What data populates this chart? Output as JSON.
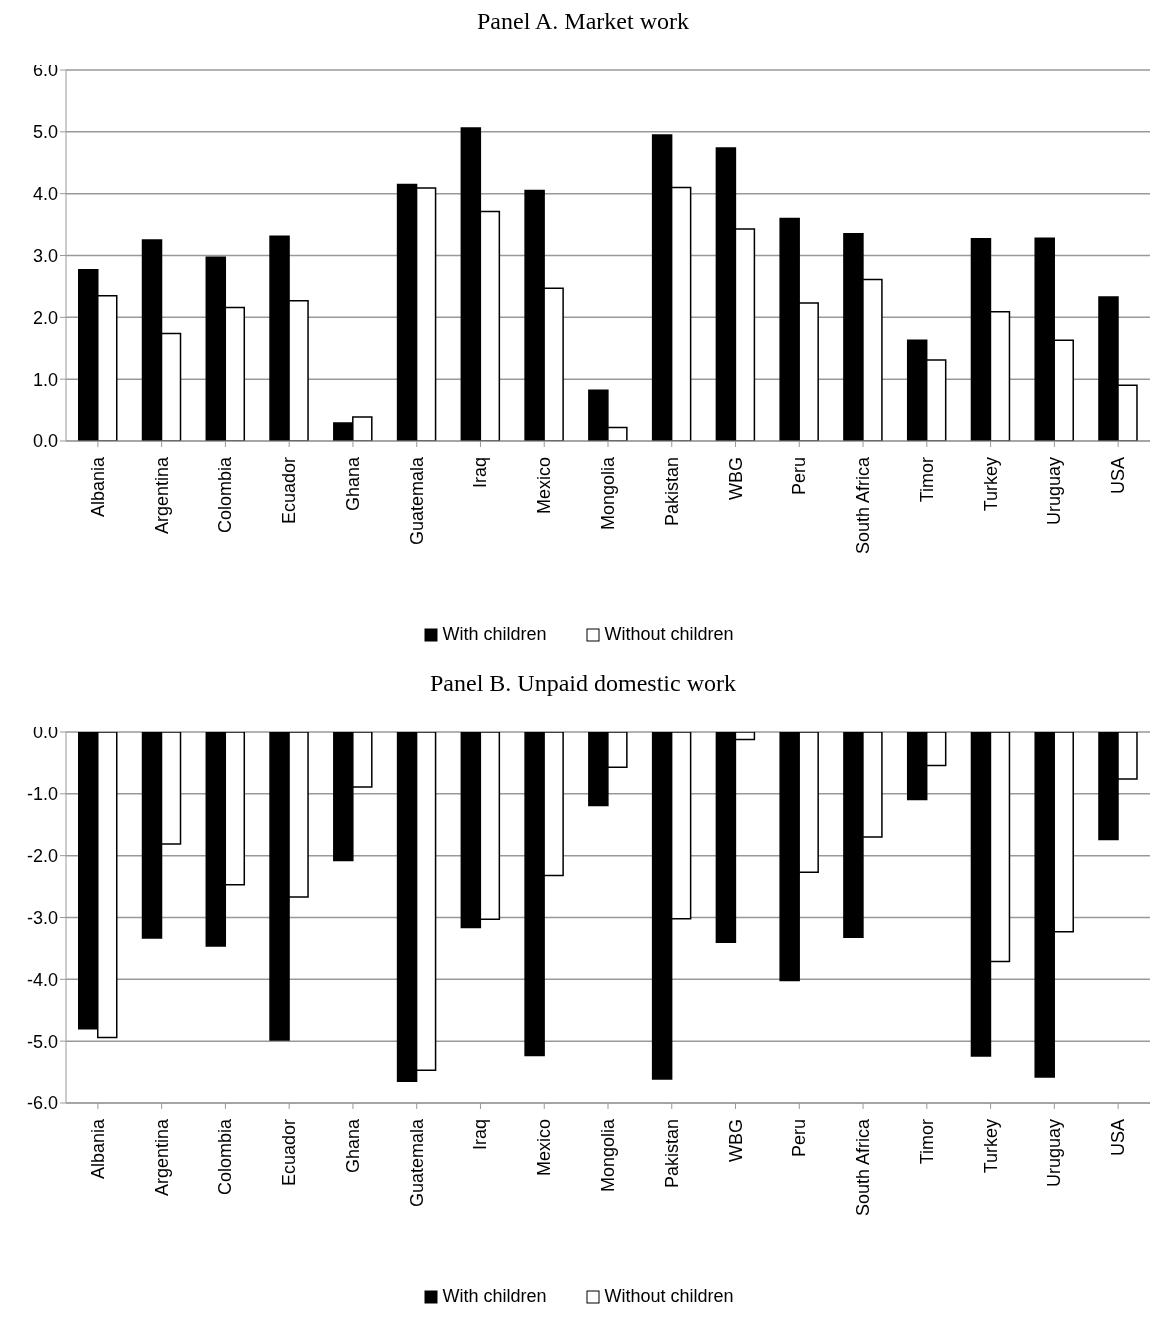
{
  "chart_data": [
    {
      "type": "bar",
      "title": "Panel A. Market work",
      "categories": [
        "Albania",
        "Argentina",
        "Colombia",
        "Ecuador",
        "Ghana",
        "Guatemala",
        "Iraq",
        "Mexico",
        "Mongolia",
        "Pakistan",
        "WBG",
        "Peru",
        "South Africa",
        "Timor",
        "Turkey",
        "Uruguay",
        "USA"
      ],
      "series": [
        {
          "name": "With children",
          "color": "#000000",
          "values": [
            2.77,
            3.25,
            2.97,
            3.31,
            0.29,
            4.15,
            5.06,
            4.05,
            0.82,
            4.95,
            4.74,
            3.6,
            3.35,
            1.63,
            3.27,
            3.28,
            2.33
          ]
        },
        {
          "name": "Without children",
          "color": "#ffffff",
          "values": [
            2.35,
            1.74,
            2.16,
            2.27,
            0.39,
            4.09,
            3.71,
            2.47,
            0.22,
            4.1,
            3.43,
            2.23,
            2.61,
            1.31,
            2.09,
            1.63,
            0.9
          ]
        }
      ],
      "ylim": [
        0,
        6
      ],
      "yticks": [
        {
          "value": 0,
          "label": "0.0"
        },
        {
          "value": 1,
          "label": "1.0"
        },
        {
          "value": 2,
          "label": "2.0"
        },
        {
          "value": 3,
          "label": "3.0"
        },
        {
          "value": 4,
          "label": "4.0"
        },
        {
          "value": 5,
          "label": "5.0"
        },
        {
          "value": 6,
          "label": "6.0"
        }
      ],
      "grid": "y",
      "legend": "bottom"
    },
    {
      "type": "bar",
      "title": "Panel B. Unpaid domestic work",
      "categories": [
        "Albania",
        "Argentina",
        "Colombia",
        "Ecuador",
        "Ghana",
        "Guatemala",
        "Iraq",
        "Mexico",
        "Mongolia",
        "Pakistan",
        "WBG",
        "Peru",
        "South Africa",
        "Timor",
        "Turkey",
        "Uruguay",
        "USA"
      ],
      "series": [
        {
          "name": "With children",
          "color": "#000000",
          "values": [
            -4.8,
            -3.33,
            -3.46,
            -4.98,
            -2.08,
            -5.65,
            -3.16,
            -5.23,
            -1.19,
            -5.61,
            -3.4,
            -4.02,
            -3.32,
            -1.09,
            -5.24,
            -5.58,
            -1.74
          ]
        },
        {
          "name": "Without children",
          "color": "#ffffff",
          "values": [
            -4.94,
            -1.81,
            -2.47,
            -2.67,
            -0.89,
            -5.47,
            -3.03,
            -2.32,
            -0.57,
            -3.02,
            -0.12,
            -2.27,
            -1.7,
            -0.54,
            -3.71,
            -3.23,
            -0.76
          ]
        }
      ],
      "ylim": [
        -6,
        0
      ],
      "yticks": [
        {
          "value": -6,
          "label": "-6.0"
        },
        {
          "value": -5,
          "label": "-5.0"
        },
        {
          "value": -4,
          "label": "-4.0"
        },
        {
          "value": -3,
          "label": "-3.0"
        },
        {
          "value": -2,
          "label": "-2.0"
        },
        {
          "value": -1,
          "label": "-1.0"
        },
        {
          "value": 0,
          "label": "0.0"
        }
      ],
      "grid": "y",
      "legend": "bottom"
    }
  ]
}
